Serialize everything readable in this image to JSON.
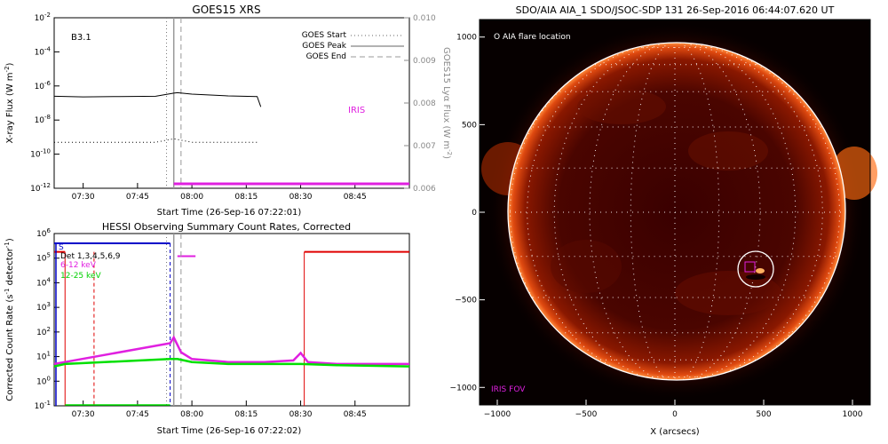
{
  "charts": {
    "goes": {
      "title": "GOES15 XRS",
      "ylabel": "X-ray Flux (W m",
      "ylabel_exp": "-2",
      "ylabel_close": ")",
      "y2label": "GOES15 Lyα Flux (W m",
      "y2label_exp": "-2",
      "y2label_close": ")",
      "xlabel": "Start Time (26-Sep-16 07:22:01)",
      "class_label": "B3.1",
      "iris_label": "IRIS",
      "legend": [
        {
          "label": "GOES Start",
          "style": "dotted"
        },
        {
          "label": "GOES Peak",
          "style": "solid"
        },
        {
          "label": "GOES End",
          "style": "dashed"
        }
      ],
      "y_ticks": [
        {
          "m": "10",
          "e": "-2"
        },
        {
          "m": "10",
          "e": "-4"
        },
        {
          "m": "10",
          "e": "-6"
        },
        {
          "m": "10",
          "e": "-8"
        },
        {
          "m": "10",
          "e": "-10"
        },
        {
          "m": "10",
          "e": "-12"
        }
      ],
      "y2_ticks": [
        "0.010",
        "0.009",
        "0.008",
        "0.007",
        "0.006"
      ],
      "x_ticks": [
        "07:30",
        "07:45",
        "08:00",
        "08:15",
        "08:30",
        "08:45"
      ]
    },
    "hessi": {
      "title": "HESSI Observing Summary Count Rates, Corrected",
      "ylabel": "Corrected Count Rate (s",
      "ylabel_exp": "-1",
      "ylabel_close": " detector",
      "ylabel_exp2": "-1",
      "ylabel_close2": ")",
      "xlabel": "Start Time (26-Sep-16 07:22:02)",
      "flag": "S",
      "legend": [
        "Det 1,3,4,5,6,9",
        "6-12 keV",
        "12-25 keV"
      ],
      "y_ticks": [
        {
          "m": "10",
          "e": "6"
        },
        {
          "m": "10",
          "e": "5"
        },
        {
          "m": "10",
          "e": "4"
        },
        {
          "m": "10",
          "e": "3"
        },
        {
          "m": "10",
          "e": "2"
        },
        {
          "m": "10",
          "e": "1"
        },
        {
          "m": "10",
          "e": "0"
        },
        {
          "m": "10",
          "e": "-1"
        }
      ],
      "x_ticks": [
        "07:30",
        "07:45",
        "08:00",
        "08:15",
        "08:30",
        "08:45"
      ]
    },
    "aia": {
      "title": "SDO/AIA AIA_1 SDO/JSOC-SDP 131 26-Sep-2016 06:44:07.620 UT",
      "flare_label": "O AIA flare location",
      "iris_fov": "IRIS FOV",
      "xlabel": "X (arcsecs)",
      "x_ticks": [
        "−1000",
        "−500",
        "0",
        "500",
        "1000"
      ],
      "y_ticks": [
        "1000",
        "500",
        "0",
        "−500",
        "−1000"
      ]
    }
  },
  "chart_data": [
    {
      "type": "line",
      "title": "GOES15 XRS",
      "xlabel": "Start Time (26-Sep-16 07:22:01)",
      "ylabel": "X-ray Flux (W m^-2)",
      "y_scale": "log",
      "ylim": [
        1e-12,
        0.01
      ],
      "y2label": "GOES15 Lyα Flux (W m^-2)",
      "y2lim": [
        0.006,
        0.01
      ],
      "x_range": [
        "07:22",
        "09:00"
      ],
      "events": {
        "start": "07:53",
        "peak": "07:55",
        "end": "07:57"
      },
      "series": [
        {
          "name": "",
          "color": "#000000",
          "style": "solid",
          "x": [
            "07:22",
            "07:30",
            "07:40",
            "07:50",
            "07:55",
            "07:56",
            "08:00",
            "08:10",
            "08:18",
            "08:19"
          ],
          "y": [
            2.5e-07,
            2.3e-07,
            2.4e-07,
            2.5e-07,
            3.8e-07,
            4e-07,
            3.3e-07,
            2.6e-07,
            2.4e-07,
            6e-08
          ]
        },
        {
          "name": "",
          "color": "#000000",
          "style": "dotted",
          "x": [
            "07:22",
            "07:30",
            "07:40",
            "07:50",
            "07:55",
            "08:00",
            "08:10",
            "08:18"
          ],
          "y": [
            5e-10,
            5e-10,
            5e-10,
            5e-10,
            8e-10,
            5e-10,
            5e-10,
            5e-10
          ]
        }
      ],
      "iris_bar": {
        "color": "#e020e0",
        "x_start": "07:55",
        "x_end": "09:00"
      },
      "legend_position": "top-right"
    },
    {
      "type": "line",
      "title": "HESSI Observing Summary Count Rates, Corrected",
      "xlabel": "Start Time (26-Sep-16 07:22:02)",
      "ylabel": "Corrected Count Rate (s^-1 detector^-1)",
      "y_scale": "log",
      "ylim": [
        0.1,
        1000000.0
      ],
      "x_range": [
        "07:22",
        "09:00"
      ],
      "lines": {
        "start": "07:53",
        "peak": "07:55",
        "end": "07:57"
      },
      "series": [
        {
          "name": "6-12 keV",
          "color": "#e020e0",
          "x": [
            "07:22",
            "07:25",
            "07:54",
            "07:55",
            "07:57",
            "08:00",
            "08:10",
            "08:20",
            "08:28",
            "08:30",
            "08:32",
            "08:40",
            "09:00"
          ],
          "y": [
            5,
            6,
            35,
            60,
            15,
            8,
            6,
            6,
            7,
            14,
            6,
            5,
            5
          ]
        },
        {
          "name": "12-25 keV",
          "color": "#00e000",
          "x": [
            "07:22",
            "07:25",
            "07:54",
            "07:56",
            "08:00",
            "08:10",
            "08:20",
            "08:30",
            "08:40",
            "09:00"
          ],
          "y": [
            4,
            5,
            8,
            8,
            6,
            5,
            5,
            5,
            4.5,
            4
          ]
        }
      ],
      "bars": [
        {
          "color": "#0000c8",
          "x_start": "07:22",
          "x_end": "07:54",
          "y": 400000.0
        },
        {
          "color": "#e00000",
          "x_start": "07:22",
          "x_end": "07:25",
          "y": 180000.0
        },
        {
          "color": "#e00000",
          "x_start": "08:31",
          "x_end": "09:00",
          "y": 180000.0
        },
        {
          "color": "#e020e0",
          "x_start": "07:56",
          "x_end": "08:01",
          "y": 120000.0
        }
      ],
      "legend_position": "top-left"
    },
    {
      "type": "heatmap",
      "title": "SDO/AIA AIA_1 SDO/JSOC-SDP 131 26-Sep-2016 06:44:07.620 UT",
      "xlabel": "X (arcsecs)",
      "xlim": [
        -1100,
        1100
      ],
      "ylim": [
        -1100,
        1100
      ],
      "solar_radius_arcsec": 960,
      "flare_location": {
        "x": 435,
        "y": -320,
        "radius": 160
      },
      "iris_fov_box": {
        "x": 420,
        "y": -300,
        "size": 60
      }
    }
  ]
}
